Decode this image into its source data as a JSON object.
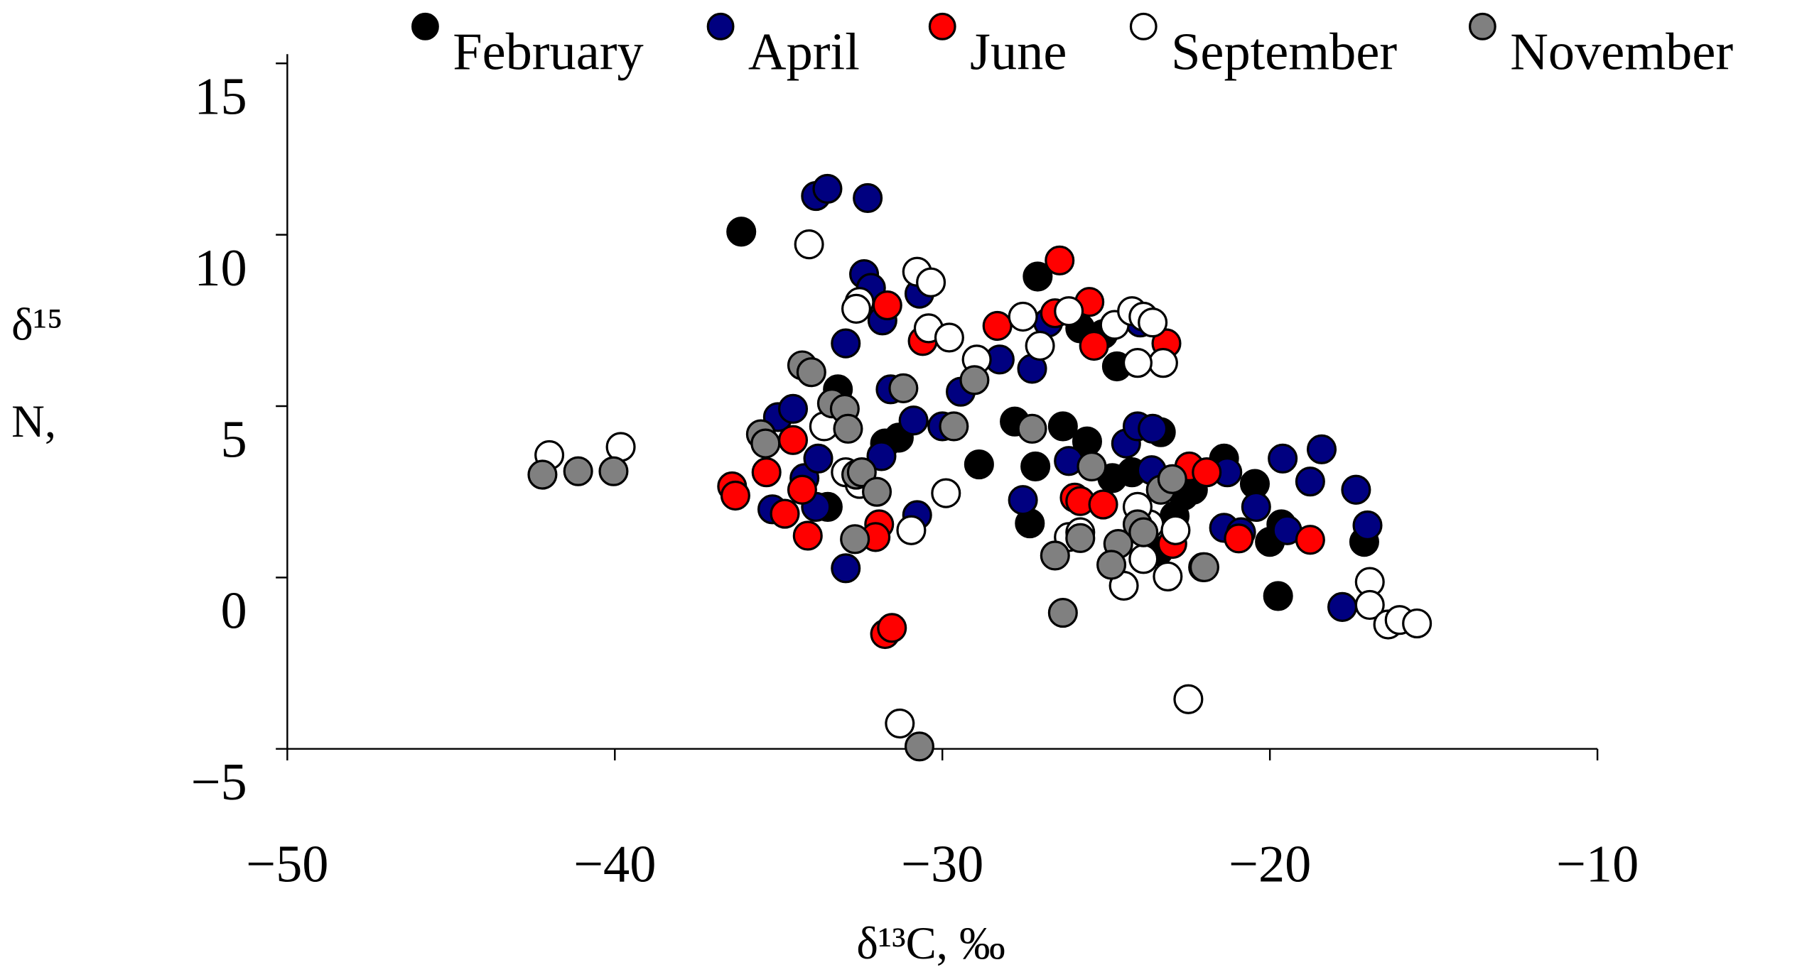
{
  "chart_data": {
    "type": "scatter",
    "xlabel": "δ¹³C, ‰",
    "ylabel": "δ¹⁵ N,",
    "xlim": [
      -50,
      -10
    ],
    "ylim": [
      -5,
      15
    ],
    "xticks": [
      {
        "value": -50,
        "label": "−50"
      },
      {
        "value": -40,
        "label": "−40"
      },
      {
        "value": -30,
        "label": "−30"
      },
      {
        "value": -20,
        "label": "−20"
      },
      {
        "value": -10,
        "label": "−10"
      }
    ],
    "yticks": [
      {
        "value": -5,
        "label": "−5"
      },
      0,
      5,
      10,
      15
    ],
    "grid": false,
    "legend": "top",
    "series": [
      {
        "name": "February",
        "color": "#000000",
        "x": [
          -36.14,
          -27.09,
          -33.19,
          -31.33,
          -31.75,
          -27.79,
          -26.32,
          -25.58,
          -28.88,
          -27.16,
          -27.33,
          -25.79,
          -25.09,
          -24.67,
          -24.81,
          -24.21,
          -23.33,
          -22.63,
          -22.35,
          -22.91,
          -23.4,
          -21.4,
          -20.46,
          -20.0,
          -19.65,
          -19.75,
          -17.12,
          -33.5
        ],
        "values": [
          10.09,
          8.78,
          5.49,
          4.08,
          3.91,
          4.55,
          4.41,
          3.97,
          3.3,
          3.24,
          1.58,
          7.27,
          7.1,
          6.16,
          2.9,
          3.07,
          4.24,
          2.39,
          2.56,
          1.79,
          0.77,
          3.47,
          2.73,
          1.04,
          1.55,
          -0.54,
          1.04,
          2.06
        ]
      },
      {
        "name": "April",
        "color": "#000080",
        "x": [
          -33.86,
          -33.51,
          -32.28,
          -32.39,
          -32.18,
          -31.83,
          -32.95,
          -31.58,
          -30.7,
          -30.88,
          -30.0,
          -29.44,
          -28.25,
          -27.26,
          -26.77,
          -27.54,
          -26.14,
          -35.02,
          -34.56,
          -35.19,
          -34.21,
          -33.86,
          -33.79,
          -32.95,
          -31.86,
          -30.77,
          -23.96,
          -24.39,
          -24.04,
          -23.61,
          -23.58,
          -21.4,
          -21.3,
          -20.42,
          -20.88,
          -19.61,
          -19.47,
          -18.77,
          -18.42,
          -17.37,
          -17.02,
          -17.79
        ],
        "values": [
          11.13,
          11.34,
          11.07,
          8.85,
          8.45,
          7.5,
          6.83,
          5.49,
          8.28,
          4.58,
          4.41,
          5.42,
          6.36,
          6.09,
          7.44,
          2.26,
          3.4,
          4.68,
          4.92,
          1.99,
          2.9,
          2.06,
          3.47,
          0.27,
          3.54,
          1.82,
          7.44,
          3.91,
          4.41,
          3.13,
          4.34,
          1.45,
          3.07,
          2.06,
          1.32,
          3.47,
          1.38,
          2.8,
          3.74,
          2.56,
          1.52,
          -0.86
        ]
      },
      {
        "name": "June",
        "color": "#ff0000",
        "x": [
          -26.42,
          -28.32,
          -26.56,
          -25.51,
          -25.37,
          -31.68,
          -30.6,
          -23.16,
          -34.56,
          -35.37,
          -36.42,
          -36.32,
          -34.81,
          -34.11,
          -34.28,
          -31.93,
          -32.04,
          -31.75,
          -31.54,
          -25.96,
          -25.79,
          -25.09,
          -22.98,
          -22.46,
          -21.93,
          -20.95,
          -18.77
        ],
        "values": [
          9.25,
          7.34,
          7.71,
          8.04,
          6.76,
          7.94,
          6.9,
          6.83,
          4.01,
          3.07,
          2.66,
          2.39,
          1.86,
          1.22,
          2.56,
          1.55,
          1.18,
          -1.65,
          -1.47,
          2.33,
          2.23,
          2.13,
          0.98,
          3.24,
          3.07,
          1.14,
          1.1
        ]
      },
      {
        "name": "September",
        "color": "#ffffff",
        "x": [
          -42.0,
          -39.82,
          -34.07,
          -30.77,
          -30.35,
          -32.53,
          -32.63,
          -30.42,
          -29.79,
          -28.95,
          -27.54,
          -27.02,
          -26.14,
          -24.74,
          -24.21,
          -23.86,
          -23.58,
          -23.26,
          -24.04,
          -33.61,
          -32.95,
          -32.53,
          -29.89,
          -30.95,
          -26.14,
          -25.79,
          -24.46,
          -23.86,
          -23.68,
          -24.04,
          -23.12,
          -22.88,
          -22.49,
          -22.04,
          -31.3,
          -16.95,
          -16.95,
          -16.39,
          -16.04,
          -15.51
        ],
        "values": [
          3.57,
          3.81,
          9.72,
          8.92,
          8.61,
          8.04,
          7.84,
          7.27,
          7.0,
          6.36,
          7.61,
          6.76,
          7.77,
          7.37,
          7.77,
          7.61,
          7.44,
          6.26,
          6.26,
          4.41,
          3.07,
          2.73,
          2.46,
          1.38,
          1.18,
          1.32,
          -0.24,
          0.54,
          1.55,
          2.06,
          0.03,
          1.38,
          -3.55,
          0.3,
          -4.26,
          -0.13,
          -0.8,
          -1.37,
          -1.24,
          -1.34
        ]
      },
      {
        "name": "November",
        "color": "#808080",
        "x": [
          -42.21,
          -41.12,
          -40.04,
          -34.28,
          -34.0,
          -35.54,
          -35.4,
          -33.37,
          -32.98,
          -32.88,
          -32.63,
          -32.46,
          -32.0,
          -32.67,
          -31.19,
          -29.65,
          -29.02,
          -27.26,
          -25.44,
          -26.56,
          -25.79,
          -26.32,
          -24.63,
          -24.84,
          -24.04,
          -23.86,
          -23.33,
          -22.98,
          -22.0,
          -30.7
        ],
        "values": [
          3.0,
          3.1,
          3.1,
          6.19,
          5.99,
          4.18,
          3.91,
          5.08,
          4.92,
          4.34,
          3.0,
          3.07,
          2.5,
          1.12,
          5.52,
          4.41,
          5.76,
          4.34,
          3.24,
          0.64,
          1.15,
          -1.03,
          0.98,
          0.37,
          1.55,
          1.32,
          2.56,
          2.87,
          0.3,
          -4.93
        ]
      }
    ]
  }
}
